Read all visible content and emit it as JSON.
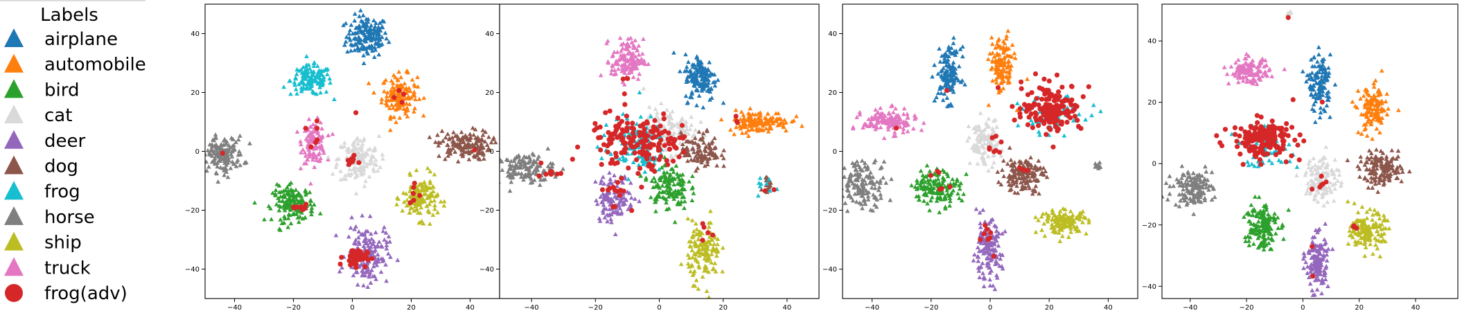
{
  "legend": {
    "title": "Labels",
    "entries": [
      {
        "label": "airplane",
        "color": "#1f77b4",
        "marker": "triangle"
      },
      {
        "label": "automobile",
        "color": "#ff7f0e",
        "marker": "triangle"
      },
      {
        "label": "bird",
        "color": "#2ca02c",
        "marker": "triangle"
      },
      {
        "label": "cat",
        "color": "#d9d9d9",
        "marker": "triangle"
      },
      {
        "label": "deer",
        "color": "#9467bd",
        "marker": "triangle"
      },
      {
        "label": "dog",
        "color": "#8c564b",
        "marker": "triangle"
      },
      {
        "label": "frog",
        "color": "#17becf",
        "marker": "triangle"
      },
      {
        "label": "horse",
        "color": "#7f7f7f",
        "marker": "triangle"
      },
      {
        "label": "ship",
        "color": "#bcbd22",
        "marker": "triangle"
      },
      {
        "label": "truck",
        "color": "#e377c2",
        "marker": "triangle"
      },
      {
        "label": "frog(adv)",
        "color": "#d62728",
        "marker": "circle"
      }
    ]
  },
  "chart_data": [
    {
      "type": "scatter",
      "xlim": [
        -50,
        50
      ],
      "ylim": [
        -50,
        50
      ],
      "xticks": [
        -40,
        -20,
        0,
        20,
        40
      ],
      "yticks": [
        -40,
        -20,
        0,
        20,
        40
      ],
      "clusters": [
        {
          "class": "airplane",
          "cx": 5,
          "cy": 39,
          "sx": 3.5,
          "sy": 3.5,
          "n": 160
        },
        {
          "class": "automobile",
          "cx": 16,
          "cy": 19,
          "sx": 3,
          "sy": 3.5,
          "n": 140
        },
        {
          "class": "frog",
          "cx": -14,
          "cy": 24,
          "sx": 3.5,
          "sy": 2.5,
          "n": 140
        },
        {
          "class": "truck",
          "cx": -13,
          "cy": 3,
          "sx": 2,
          "sy": 3.5,
          "n": 120
        },
        {
          "class": "cat",
          "cx": 2,
          "cy": -3,
          "sx": 3.5,
          "sy": 4,
          "n": 150
        },
        {
          "class": "dog",
          "cx": 38,
          "cy": 2,
          "sx": 4.5,
          "sy": 2.5,
          "n": 150
        },
        {
          "class": "horse",
          "cx": -44,
          "cy": -1,
          "sx": 3.5,
          "sy": 3,
          "n": 150
        },
        {
          "class": "bird",
          "cx": -20,
          "cy": -18,
          "sx": 3.5,
          "sy": 3,
          "n": 150
        },
        {
          "class": "ship",
          "cx": 23,
          "cy": -16,
          "sx": 3,
          "sy": 3.5,
          "n": 140
        },
        {
          "class": "deer",
          "cx": 5,
          "cy": -35,
          "sx": 3.5,
          "sy": 5,
          "n": 160
        }
      ],
      "adv_clusters": [
        {
          "cx": 1,
          "cy": -36,
          "sx": 2,
          "sy": 1.5,
          "n": 45
        },
        {
          "cx": -18,
          "cy": -19,
          "sx": 2,
          "sy": 0.8,
          "n": 12
        },
        {
          "cx": 0,
          "cy": -3,
          "sx": 0.8,
          "sy": 0.8,
          "n": 8
        },
        {
          "cx": -14,
          "cy": 4,
          "sx": 1.5,
          "sy": 3,
          "n": 6
        },
        {
          "cx": 15,
          "cy": 18,
          "sx": 1.5,
          "sy": 1.5,
          "n": 4
        },
        {
          "cx": 21,
          "cy": -16,
          "sx": 1,
          "sy": 3,
          "n": 6
        },
        {
          "cx": 1,
          "cy": 13,
          "sx": 0.3,
          "sy": 0.3,
          "n": 1
        },
        {
          "cx": -44,
          "cy": -1,
          "sx": 0.5,
          "sy": 0.5,
          "n": 1
        },
        {
          "cx": 41,
          "cy": 0,
          "sx": 0.5,
          "sy": 0.5,
          "n": 1
        }
      ]
    },
    {
      "type": "scatter",
      "xlim": [
        -50,
        50
      ],
      "ylim": [
        -50,
        50
      ],
      "xticks": [
        -40,
        -20,
        0,
        20,
        40
      ],
      "yticks": [
        -40,
        -20,
        0,
        20,
        40
      ],
      "clusters": [
        {
          "class": "truck",
          "cx": -10,
          "cy": 31,
          "sx": 2.5,
          "sy": 3.5,
          "n": 130
        },
        {
          "class": "airplane",
          "cx": 13,
          "cy": 25,
          "sx": 2.5,
          "sy": 4,
          "n": 140
        },
        {
          "class": "automobile",
          "cx": 31,
          "cy": 10,
          "sx": 5,
          "sy": 1.8,
          "n": 140
        },
        {
          "class": "horse",
          "cx": -42,
          "cy": -6,
          "sx": 4.5,
          "sy": 2.5,
          "n": 140
        },
        {
          "class": "cat",
          "cx": 3,
          "cy": 7,
          "sx": 4,
          "sy": 4,
          "n": 110
        },
        {
          "class": "frog",
          "cx": -8,
          "cy": 2,
          "sx": 5,
          "sy": 5,
          "n": 110
        },
        {
          "class": "dog",
          "cx": 13,
          "cy": 0,
          "sx": 3,
          "sy": 3,
          "n": 110
        },
        {
          "class": "deer",
          "cx": -14,
          "cy": -16,
          "sx": 3,
          "sy": 4,
          "n": 120
        },
        {
          "class": "bird",
          "cx": 3,
          "cy": -12,
          "sx": 3,
          "sy": 4,
          "n": 130
        },
        {
          "class": "ship",
          "cx": 14,
          "cy": -34,
          "sx": 2.5,
          "sy": 5,
          "n": 140
        },
        {
          "class": "dog",
          "cx": 34,
          "cy": -12,
          "sx": 1,
          "sy": 1.2,
          "n": 20
        },
        {
          "class": "frog",
          "cx": 34,
          "cy": -12,
          "sx": 1.8,
          "sy": 1.8,
          "n": 10
        }
      ],
      "adv_clusters": [
        {
          "cx": -8,
          "cy": 3,
          "sx": 7,
          "sy": 5,
          "n": 150
        },
        {
          "cx": 4,
          "cy": 5,
          "sx": 3,
          "sy": 3,
          "n": 20
        },
        {
          "cx": -13,
          "cy": -14,
          "sx": 2.5,
          "sy": 3,
          "n": 15
        },
        {
          "cx": -36,
          "cy": -7,
          "sx": 2,
          "sy": 1.2,
          "n": 8
        },
        {
          "cx": 14,
          "cy": -27,
          "sx": 1.2,
          "sy": 1.5,
          "n": 5
        },
        {
          "cx": 24,
          "cy": 10,
          "sx": 1,
          "sy": 1,
          "n": 3
        },
        {
          "cx": -10,
          "cy": 26,
          "sx": 1,
          "sy": 1,
          "n": 2
        },
        {
          "cx": 34,
          "cy": -12,
          "sx": 0.6,
          "sy": 0.6,
          "n": 2
        }
      ]
    },
    {
      "type": "scatter",
      "xlim": [
        -50,
        50
      ],
      "ylim": [
        -50,
        50
      ],
      "xticks": [
        -40,
        -20,
        0,
        20,
        40
      ],
      "yticks": [
        -40,
        -20,
        0,
        20,
        40
      ],
      "clusters": [
        {
          "class": "airplane",
          "cx": -14,
          "cy": 26,
          "sx": 2,
          "sy": 4.5,
          "n": 130
        },
        {
          "class": "automobile",
          "cx": 4,
          "cy": 29,
          "sx": 2,
          "sy": 5,
          "n": 130
        },
        {
          "class": "truck",
          "cx": -34,
          "cy": 10,
          "sx": 4.5,
          "sy": 2,
          "n": 140
        },
        {
          "class": "cat",
          "cx": -2,
          "cy": 3,
          "sx": 2.5,
          "sy": 4,
          "n": 110
        },
        {
          "class": "frog",
          "cx": 22,
          "cy": 12,
          "sx": 6,
          "sy": 3,
          "n": 60
        },
        {
          "class": "horse",
          "cx": -43,
          "cy": -11,
          "sx": 4,
          "sy": 4,
          "n": 140
        },
        {
          "class": "bird",
          "cx": -18,
          "cy": -12,
          "sx": 4,
          "sy": 3,
          "n": 150
        },
        {
          "class": "dog",
          "cx": 11,
          "cy": -8,
          "sx": 3.5,
          "sy": 3,
          "n": 150
        },
        {
          "class": "deer",
          "cx": -1,
          "cy": -34,
          "sx": 2.5,
          "sy": 5,
          "n": 140
        },
        {
          "class": "ship",
          "cx": 25,
          "cy": -24,
          "sx": 4,
          "sy": 2,
          "n": 140
        },
        {
          "class": "horse",
          "cx": 37,
          "cy": -5,
          "sx": 0.8,
          "sy": 0.8,
          "n": 10
        }
      ],
      "adv_clusters": [
        {
          "cx": 21,
          "cy": 15,
          "sx": 5,
          "sy": 4,
          "n": 160
        },
        {
          "cx": 1,
          "cy": 2,
          "sx": 1.5,
          "sy": 2,
          "n": 8
        },
        {
          "cx": -1,
          "cy": -30,
          "sx": 1.5,
          "sy": 4,
          "n": 8
        },
        {
          "cx": -18,
          "cy": -10,
          "sx": 2,
          "sy": 2,
          "n": 6
        },
        {
          "cx": 12,
          "cy": -7,
          "sx": 1.5,
          "sy": 1.5,
          "n": 4
        },
        {
          "cx": -15,
          "cy": 20,
          "sx": 0.5,
          "sy": 0.5,
          "n": 1
        },
        {
          "cx": 3,
          "cy": 22,
          "sx": 0.5,
          "sy": 0.5,
          "n": 1
        },
        {
          "cx": -32,
          "cy": 8,
          "sx": 0.5,
          "sy": 0.5,
          "n": 1
        }
      ]
    },
    {
      "type": "scatter",
      "xlim": [
        -50,
        55
      ],
      "ylim": [
        -44,
        52
      ],
      "xticks": [
        -40,
        -20,
        0,
        20,
        40
      ],
      "yticks": [
        -40,
        -20,
        0,
        20,
        40
      ],
      "clusters": [
        {
          "class": "airplane",
          "cx": 6,
          "cy": 26,
          "sx": 2,
          "sy": 4.5,
          "n": 130
        },
        {
          "class": "truck",
          "cx": -19,
          "cy": 30,
          "sx": 3.5,
          "sy": 2,
          "n": 130
        },
        {
          "class": "automobile",
          "cx": 25,
          "cy": 17,
          "sx": 2.5,
          "sy": 4,
          "n": 130
        },
        {
          "class": "frog",
          "cx": -14,
          "cy": 5,
          "sx": 5,
          "sy": 3,
          "n": 70
        },
        {
          "class": "cat",
          "cx": 7,
          "cy": -5,
          "sx": 3,
          "sy": 4,
          "n": 120
        },
        {
          "class": "dog",
          "cx": 28,
          "cy": -2,
          "sx": 4,
          "sy": 2.5,
          "n": 150
        },
        {
          "class": "horse",
          "cx": -39,
          "cy": -8,
          "sx": 3.5,
          "sy": 3,
          "n": 140
        },
        {
          "class": "bird",
          "cx": -15,
          "cy": -20,
          "sx": 3,
          "sy": 4,
          "n": 150
        },
        {
          "class": "ship",
          "cx": 23,
          "cy": -22,
          "sx": 3,
          "sy": 3,
          "n": 150
        },
        {
          "class": "deer",
          "cx": 5,
          "cy": -32,
          "sx": 2,
          "sy": 4.5,
          "n": 140
        },
        {
          "class": "cat",
          "cx": -5,
          "cy": 49,
          "sx": 0.5,
          "sy": 0.6,
          "n": 8
        }
      ],
      "adv_clusters": [
        {
          "cx": -14,
          "cy": 8,
          "sx": 5.5,
          "sy": 3,
          "n": 160
        },
        {
          "cx": 6,
          "cy": -8,
          "sx": 1.5,
          "sy": 2,
          "n": 6
        },
        {
          "cx": 18,
          "cy": -20,
          "sx": 1,
          "sy": 1,
          "n": 4
        },
        {
          "cx": -5,
          "cy": 48,
          "sx": 0.3,
          "sy": 0.3,
          "n": 1
        },
        {
          "cx": 3,
          "cy": -26,
          "sx": 0.5,
          "sy": 0.5,
          "n": 1
        },
        {
          "cx": 4,
          "cy": -38,
          "sx": 0.5,
          "sy": 0.5,
          "n": 1
        },
        {
          "cx": 7,
          "cy": 20,
          "sx": 0.5,
          "sy": 0.5,
          "n": 1
        }
      ]
    }
  ]
}
